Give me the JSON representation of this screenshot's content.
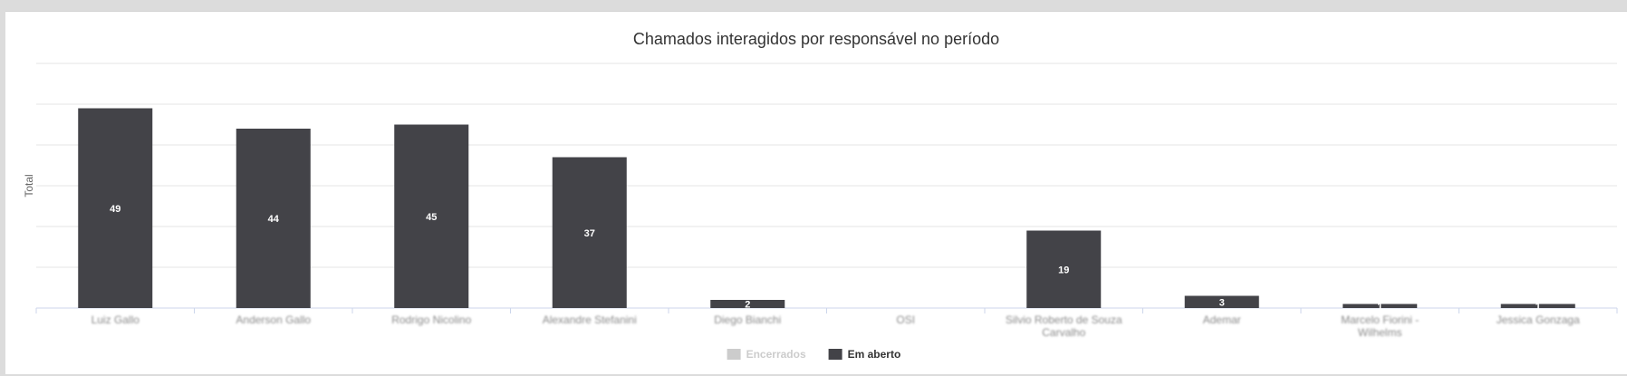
{
  "chart_data": {
    "type": "bar",
    "title": "Chamados interagidos por responsável no período",
    "xlabel": "",
    "ylabel": "Total",
    "ylim": [
      0,
      60
    ],
    "grid": true,
    "legend_position": "bottom-center",
    "categories": [
      "Luiz Gallo",
      "Anderson Gallo",
      "Rodrigo Nicolino",
      "Alexandre Stefanini",
      "Diego Bianchi",
      "OSI",
      "Silvio Roberto de Souza Carvalho",
      "Ademar",
      "Marcelo Fiorini - Wilhelms",
      "Jessica Gonzaga"
    ],
    "series": [
      {
        "name": "Encerrados",
        "color": "#cccccc",
        "hidden": true,
        "values": [
          0,
          0,
          0,
          0,
          0,
          0,
          0,
          0,
          0,
          0
        ]
      },
      {
        "name": "Em aberto",
        "color": "#434348",
        "hidden": false,
        "values": [
          49,
          44,
          45,
          37,
          2,
          0,
          19,
          3,
          1,
          1
        ]
      }
    ]
  }
}
